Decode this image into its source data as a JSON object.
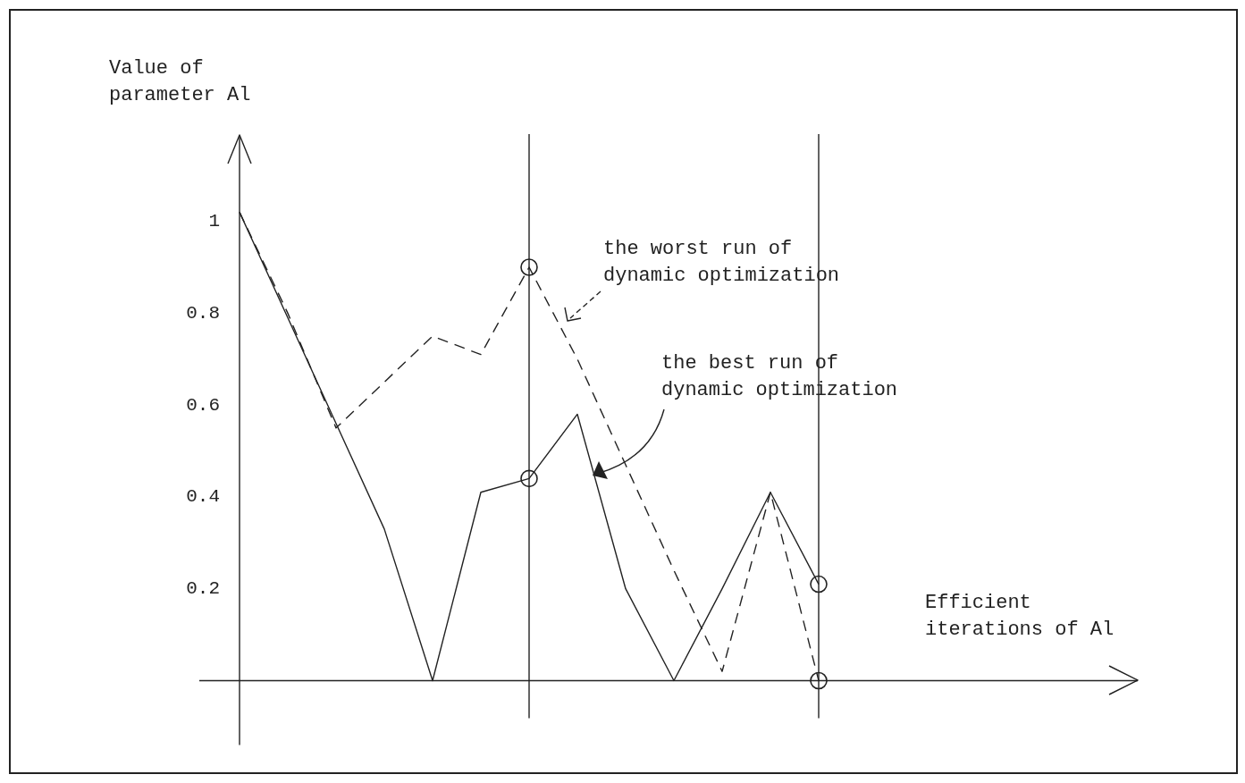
{
  "chart_data": {
    "type": "line",
    "ylabel": "Value of\nparameter Al",
    "xlabel": "Efficient\niterations of Al",
    "categories": [
      null,
      null,
      null,
      null,
      null,
      null,
      null,
      null,
      null,
      null,
      null,
      null,
      null
    ],
    "series": [
      {
        "color": "#222222",
        "line_style": "dashed",
        "marker": "none",
        "values": [
          1.02,
          0.8,
          0.55,
          0.65,
          0.75,
          0.71,
          0.9,
          0.7,
          0.47,
          0.24,
          0.02,
          0.41,
          0.0
        ]
      },
      {
        "color": "#222222",
        "line_style": "solid",
        "marker": "none",
        "values": [
          1.02,
          0.79,
          0.56,
          0.33,
          0.0,
          0.41,
          0.44,
          0.58,
          0.2,
          0.0,
          0.2,
          0.41,
          0.21
        ]
      },
      {
        "type": "scatter",
        "color": "#222222",
        "marker": "circle",
        "values": [
          null,
          null,
          null,
          null,
          null,
          null,
          0.9,
          null,
          null,
          null,
          null,
          null,
          0.0
        ]
      },
      {
        "type": "scatter",
        "color": "#222222",
        "marker": "circle",
        "values": [
          null,
          null,
          null,
          null,
          null,
          null,
          0.44,
          null,
          null,
          null,
          null,
          null,
          0.21
        ]
      }
    ],
    "ylim": [
      -0.14,
      1.19
    ],
    "yticks": [
      0.2,
      0.4,
      0.6,
      0.8,
      1
    ],
    "grid": "x",
    "legend": false,
    "annotations": [
      "the worst run of\ndynamic optimization",
      "the best run of\ndynamic optimization"
    ]
  }
}
